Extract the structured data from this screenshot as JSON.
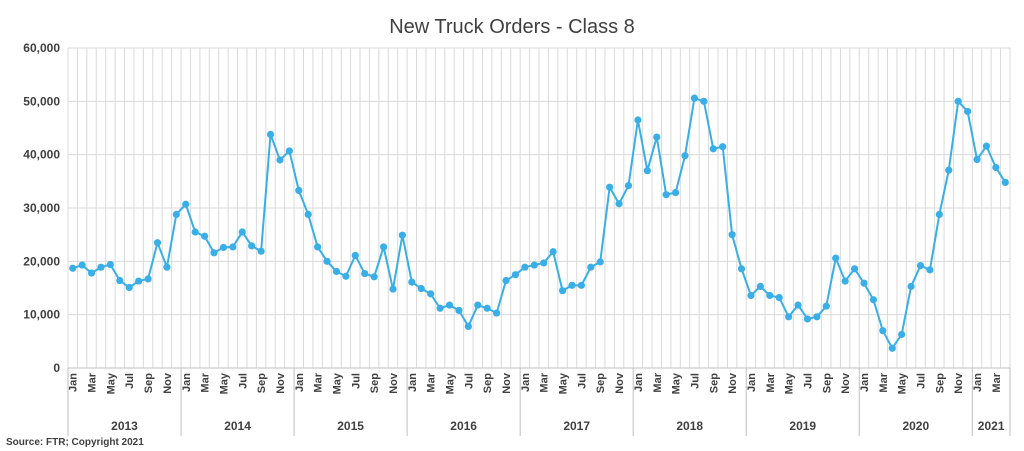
{
  "source": "Source: FTR; Copyright 2021",
  "chart_data": {
    "type": "line",
    "title": "New Truck Orders - Class 8",
    "xlabel": "",
    "ylabel": "",
    "ylim": [
      0,
      60000
    ],
    "yticks": [
      "0",
      "10,000",
      "20,000",
      "30,000",
      "40,000",
      "50,000",
      "60,000"
    ],
    "ytick_values": [
      0,
      10000,
      20000,
      30000,
      40000,
      50000,
      60000
    ],
    "grid": true,
    "legend": "none",
    "line_color": "#3aaee6",
    "x": [
      "2013-01",
      "2013-02",
      "2013-03",
      "2013-04",
      "2013-05",
      "2013-06",
      "2013-07",
      "2013-08",
      "2013-09",
      "2013-10",
      "2013-11",
      "2013-12",
      "2014-01",
      "2014-02",
      "2014-03",
      "2014-04",
      "2014-05",
      "2014-06",
      "2014-07",
      "2014-08",
      "2014-09",
      "2014-10",
      "2014-11",
      "2014-12",
      "2015-01",
      "2015-02",
      "2015-03",
      "2015-04",
      "2015-05",
      "2015-06",
      "2015-07",
      "2015-08",
      "2015-09",
      "2015-10",
      "2015-11",
      "2015-12",
      "2016-01",
      "2016-02",
      "2016-03",
      "2016-04",
      "2016-05",
      "2016-06",
      "2016-07",
      "2016-08",
      "2016-09",
      "2016-10",
      "2016-11",
      "2016-12",
      "2017-01",
      "2017-02",
      "2017-03",
      "2017-04",
      "2017-05",
      "2017-06",
      "2017-07",
      "2017-08",
      "2017-09",
      "2017-10",
      "2017-11",
      "2017-12",
      "2018-01",
      "2018-02",
      "2018-03",
      "2018-04",
      "2018-05",
      "2018-06",
      "2018-07",
      "2018-08",
      "2018-09",
      "2018-10",
      "2018-11",
      "2018-12",
      "2019-01",
      "2019-02",
      "2019-03",
      "2019-04",
      "2019-05",
      "2019-06",
      "2019-07",
      "2019-08",
      "2019-09",
      "2019-10",
      "2019-11",
      "2019-12",
      "2020-01",
      "2020-02",
      "2020-03",
      "2020-04",
      "2020-05",
      "2020-06",
      "2020-07",
      "2020-08",
      "2020-09",
      "2020-10",
      "2020-11",
      "2020-12",
      "2021-01",
      "2021-02",
      "2021-03",
      "2021-04"
    ],
    "month_labels": [
      "Jan",
      "",
      "Mar",
      "",
      "May",
      "",
      "Jul",
      "",
      "Sep",
      "",
      "Nov",
      "",
      "Jan",
      "",
      "Mar",
      "",
      "May",
      "",
      "Jul",
      "",
      "Sep",
      "",
      "Nov",
      "",
      "Jan",
      "",
      "Mar",
      "",
      "May",
      "",
      "Jul",
      "",
      "Sep",
      "",
      "Nov",
      "",
      "Jan",
      "",
      "Mar",
      "",
      "May",
      "",
      "Jul",
      "",
      "Sep",
      "",
      "Nov",
      "",
      "Jan",
      "",
      "Mar",
      "",
      "May",
      "",
      "Jul",
      "",
      "Sep",
      "",
      "Nov",
      "",
      "Jan",
      "",
      "Mar",
      "",
      "May",
      "",
      "Jul",
      "",
      "Sep",
      "",
      "Nov",
      "",
      "Jan",
      "",
      "Mar",
      "",
      "May",
      "",
      "Jul",
      "",
      "Sep",
      "",
      "Nov",
      "",
      "Jan",
      "",
      "Mar",
      "",
      "May",
      "",
      "Jul",
      "",
      "Sep",
      "",
      "Nov",
      "",
      "Jan",
      "",
      "Mar",
      ""
    ],
    "year_groups": [
      {
        "label": "2013",
        "months": 12
      },
      {
        "label": "2014",
        "months": 12
      },
      {
        "label": "2015",
        "months": 12
      },
      {
        "label": "2016",
        "months": 12
      },
      {
        "label": "2017",
        "months": 12
      },
      {
        "label": "2018",
        "months": 12
      },
      {
        "label": "2019",
        "months": 12
      },
      {
        "label": "2020",
        "months": 12
      },
      {
        "label": "2021",
        "months": 4
      }
    ],
    "series": [
      {
        "values": [
          18700,
          19300,
          17800,
          18900,
          19400,
          16400,
          15100,
          16300,
          16700,
          23500,
          18900,
          28800,
          30700,
          25500,
          24700,
          21600,
          22600,
          22700,
          25500,
          22900,
          21900,
          43800,
          39000,
          40700,
          33300,
          28800,
          22700,
          20000,
          18100,
          17200,
          21100,
          17700,
          17100,
          22700,
          14800,
          24900,
          16100,
          14900,
          13900,
          11200,
          11800,
          10800,
          7800,
          11800,
          11200,
          10300,
          16400,
          17500,
          18900,
          19300,
          19700,
          21800,
          14500,
          15500,
          15500,
          18900,
          19900,
          33900,
          30800,
          34200,
          46500,
          37000,
          43300,
          32500,
          32900,
          39800,
          50600,
          50000,
          41100,
          41500,
          25000,
          18600,
          13600,
          15300,
          13600,
          13200,
          9600,
          11800,
          9200,
          9600,
          11600,
          20600,
          16300,
          18600,
          15900,
          12800,
          7000,
          3700,
          6300,
          15300,
          19200,
          18400,
          28800,
          37100,
          50000,
          48100,
          39100,
          41600,
          37600,
          34800
        ]
      }
    ]
  }
}
